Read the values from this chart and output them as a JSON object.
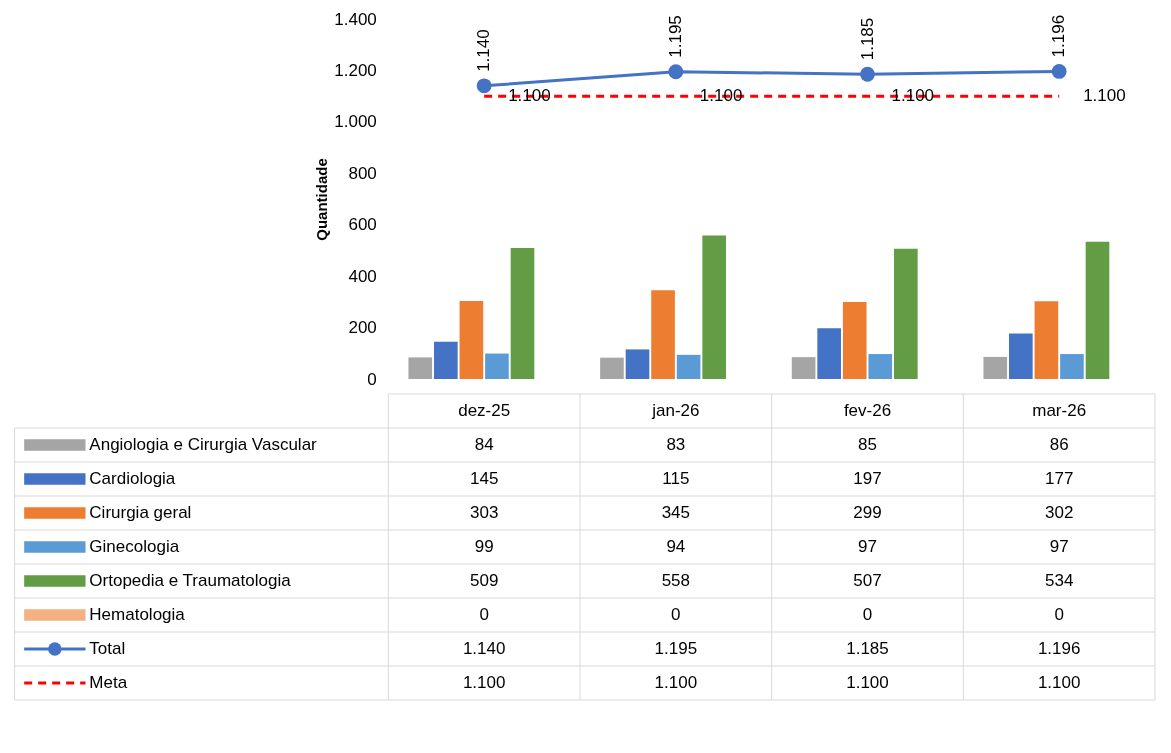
{
  "chart_data": {
    "type": "bar",
    "categories": [
      "dez-25",
      "jan-26",
      "fev-26",
      "mar-26"
    ],
    "ylabel": "Quantidade",
    "ylim": [
      0,
      1400
    ],
    "yticks": [
      0,
      200,
      400,
      600,
      800,
      {
        "value": 1000,
        "label": "1.000"
      },
      {
        "value": 1200,
        "label": "1.200"
      },
      {
        "value": 1400,
        "label": "1.400"
      }
    ],
    "grid": false,
    "legend": "bottom",
    "series": [
      {
        "name": "Angiologia e Cirurgia Vascular",
        "color": "#a5a5a5",
        "values": [
          84,
          83,
          85,
          86
        ],
        "value_labels": [
          "84",
          "83",
          "85",
          "86"
        ]
      },
      {
        "name": "Cardiologia",
        "color": "#4472c4",
        "values": [
          145,
          115,
          197,
          177
        ],
        "value_labels": [
          "145",
          "115",
          "197",
          "177"
        ]
      },
      {
        "name": "Cirurgia geral",
        "color": "#ed7d31",
        "values": [
          303,
          345,
          299,
          302
        ],
        "value_labels": [
          "303",
          "345",
          "299",
          "302"
        ]
      },
      {
        "name": "Ginecologia",
        "color": "#5b9bd5",
        "values": [
          99,
          94,
          97,
          97
        ],
        "value_labels": [
          "99",
          "94",
          "97",
          "97"
        ]
      },
      {
        "name": "Ortopedia e Traumatologia",
        "color": "#629c44",
        "values": [
          509,
          558,
          507,
          534
        ],
        "value_labels": [
          "509",
          "558",
          "507",
          "534"
        ]
      },
      {
        "name": "Hematologia",
        "color": "#f4b183",
        "values": [
          0,
          0,
          0,
          0
        ],
        "value_labels": [
          "0",
          "0",
          "0",
          "0"
        ]
      },
      {
        "name": "Total",
        "type": "line",
        "color": "#4472c4",
        "marker": "circle",
        "line_style": "solid",
        "values": [
          1140,
          1195,
          1185,
          1196
        ],
        "value_labels": [
          "1.140",
          "1.195",
          "1.185",
          "1.196"
        ]
      },
      {
        "name": "Meta",
        "type": "line",
        "color": "#ff0000",
        "marker": "none",
        "line_style": "dashed",
        "values": [
          1100,
          1100,
          1100,
          1100
        ],
        "value_labels": [
          "1.100",
          "1.100",
          "1.100",
          "1.100"
        ]
      }
    ]
  }
}
